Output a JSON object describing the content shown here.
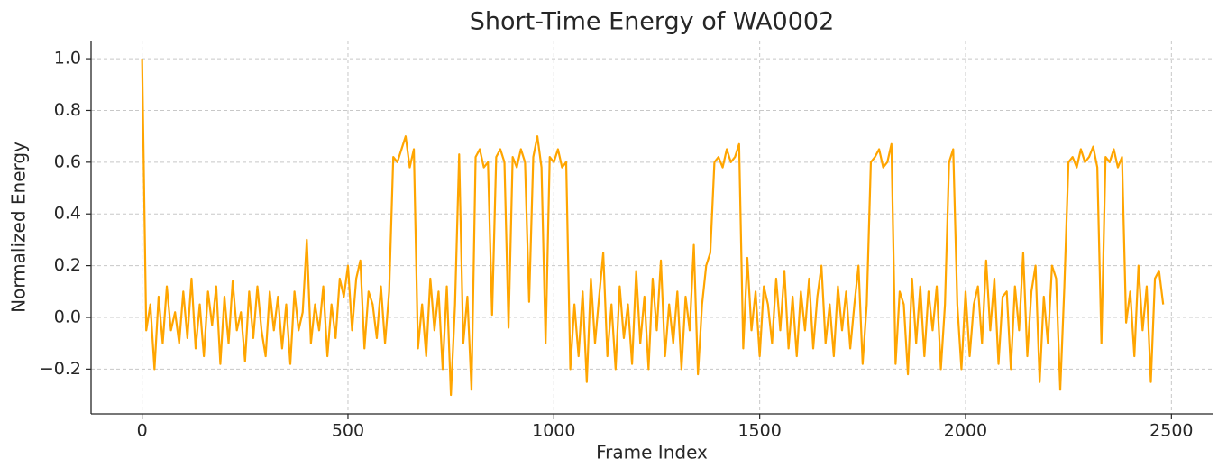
{
  "chart_data": {
    "type": "line",
    "title": "Short-Time Energy of WA0002",
    "xlabel": "Frame Index",
    "ylabel": "Normalized Energy",
    "xlim": [
      -124,
      2600
    ],
    "ylim": [
      -0.373,
      1.07
    ],
    "xticks": [
      0,
      500,
      1000,
      1500,
      2000,
      2500
    ],
    "yticks": [
      {
        "value": 1,
        "label": "1.0"
      },
      0.8,
      0.6,
      0.4,
      0.2,
      {
        "value": 0,
        "label": "0.0"
      },
      {
        "value": -0.2,
        "label": "−0.2"
      }
    ],
    "grid": true,
    "series": [
      {
        "color": "#ffa500",
        "x": [
          0,
          10,
          20,
          30,
          40,
          50,
          60,
          70,
          80,
          90,
          100,
          110,
          120,
          130,
          140,
          150,
          160,
          170,
          180,
          190,
          200,
          210,
          220,
          230,
          240,
          250,
          260,
          270,
          280,
          290,
          300,
          310,
          320,
          330,
          340,
          350,
          360,
          370,
          380,
          390,
          400,
          410,
          420,
          430,
          440,
          450,
          460,
          470,
          480,
          490,
          500,
          510,
          520,
          530,
          540,
          550,
          560,
          570,
          580,
          590,
          600,
          610,
          620,
          630,
          640,
          650,
          660,
          670,
          680,
          690,
          700,
          710,
          720,
          730,
          740,
          750,
          760,
          770,
          780,
          790,
          800,
          810,
          820,
          830,
          840,
          850,
          860,
          870,
          880,
          890,
          900,
          910,
          920,
          930,
          940,
          950,
          960,
          970,
          980,
          990,
          1000,
          1010,
          1020,
          1030,
          1040,
          1050,
          1060,
          1070,
          1080,
          1090,
          1100,
          1110,
          1120,
          1130,
          1140,
          1150,
          1160,
          1170,
          1180,
          1190,
          1200,
          1210,
          1220,
          1230,
          1240,
          1250,
          1260,
          1270,
          1280,
          1290,
          1300,
          1310,
          1320,
          1330,
          1340,
          1350,
          1360,
          1370,
          1380,
          1390,
          1400,
          1410,
          1420,
          1430,
          1440,
          1450,
          1460,
          1470,
          1480,
          1490,
          1500,
          1510,
          1520,
          1530,
          1540,
          1550,
          1560,
          1570,
          1580,
          1590,
          1600,
          1610,
          1620,
          1630,
          1640,
          1650,
          1660,
          1670,
          1680,
          1690,
          1700,
          1710,
          1720,
          1730,
          1740,
          1750,
          1760,
          1770,
          1780,
          1790,
          1800,
          1810,
          1820,
          1830,
          1840,
          1850,
          1860,
          1870,
          1880,
          1890,
          1900,
          1910,
          1920,
          1930,
          1940,
          1950,
          1960,
          1970,
          1980,
          1990,
          2000,
          2010,
          2020,
          2030,
          2040,
          2050,
          2060,
          2070,
          2080,
          2090,
          2100,
          2110,
          2120,
          2130,
          2140,
          2150,
          2160,
          2170,
          2180,
          2190,
          2200,
          2210,
          2220,
          2230,
          2240,
          2250,
          2260,
          2270,
          2280,
          2290,
          2300,
          2310,
          2320,
          2330,
          2340,
          2350,
          2360,
          2370,
          2380,
          2390,
          2400,
          2410,
          2420,
          2430,
          2440,
          2450,
          2460,
          2470,
          2480
        ],
        "values": [
          1.0,
          -0.05,
          0.05,
          -0.2,
          0.08,
          -0.1,
          0.12,
          -0.05,
          0.02,
          -0.1,
          0.1,
          -0.08,
          0.15,
          -0.12,
          0.05,
          -0.15,
          0.1,
          -0.03,
          0.12,
          -0.18,
          0.08,
          -0.1,
          0.14,
          -0.05,
          0.02,
          -0.17,
          0.1,
          -0.08,
          0.12,
          -0.05,
          -0.15,
          0.1,
          -0.05,
          0.08,
          -0.12,
          0.05,
          -0.18,
          0.1,
          -0.05,
          0.02,
          0.3,
          -0.1,
          0.05,
          -0.05,
          0.12,
          -0.15,
          0.05,
          -0.08,
          0.15,
          0.08,
          0.2,
          -0.05,
          0.15,
          0.22,
          -0.12,
          0.1,
          0.05,
          -0.08,
          0.12,
          -0.1,
          0.1,
          0.62,
          0.6,
          0.65,
          0.7,
          0.58,
          0.65,
          -0.12,
          0.05,
          -0.15,
          0.15,
          -0.05,
          0.1,
          -0.2,
          0.12,
          -0.3,
          0.05,
          0.63,
          -0.1,
          0.08,
          -0.28,
          0.62,
          0.65,
          0.58,
          0.6,
          0.01,
          0.62,
          0.65,
          0.6,
          -0.04,
          0.62,
          0.58,
          0.65,
          0.6,
          0.06,
          0.62,
          0.7,
          0.58,
          -0.1,
          0.62,
          0.6,
          0.65,
          0.58,
          0.6,
          -0.2,
          0.05,
          -0.15,
          0.1,
          -0.25,
          0.15,
          -0.1,
          0.08,
          0.25,
          -0.15,
          0.05,
          -0.2,
          0.12,
          -0.08,
          0.05,
          -0.18,
          0.18,
          -0.1,
          0.08,
          -0.2,
          0.15,
          -0.05,
          0.22,
          -0.15,
          0.05,
          -0.1,
          0.1,
          -0.2,
          0.08,
          -0.05,
          0.28,
          -0.22,
          0.05,
          0.2,
          0.25,
          0.6,
          0.62,
          0.58,
          0.65,
          0.6,
          0.62,
          0.67,
          -0.12,
          0.23,
          -0.05,
          0.1,
          -0.15,
          0.12,
          0.05,
          -0.1,
          0.15,
          -0.05,
          0.18,
          -0.12,
          0.08,
          -0.15,
          0.1,
          -0.05,
          0.15,
          -0.12,
          0.08,
          0.2,
          -0.1,
          0.05,
          -0.15,
          0.12,
          -0.05,
          0.1,
          -0.12,
          0.05,
          0.2,
          -0.18,
          0.05,
          0.6,
          0.62,
          0.65,
          0.58,
          0.6,
          0.67,
          -0.18,
          0.1,
          0.05,
          -0.22,
          0.15,
          -0.1,
          0.12,
          -0.15,
          0.1,
          -0.05,
          0.12,
          -0.2,
          0.05,
          0.6,
          0.65,
          0.05,
          -0.2,
          0.1,
          -0.15,
          0.05,
          0.12,
          -0.1,
          0.22,
          -0.05,
          0.15,
          -0.18,
          0.08,
          0.1,
          -0.2,
          0.12,
          -0.05,
          0.25,
          -0.15,
          0.1,
          0.2,
          -0.25,
          0.08,
          -0.1,
          0.2,
          0.15,
          -0.28,
          0.12,
          0.6,
          0.62,
          0.58,
          0.65,
          0.6,
          0.62,
          0.66,
          0.58,
          -0.1,
          0.62,
          0.6,
          0.65,
          0.58,
          0.62,
          -0.02,
          0.1,
          -0.15,
          0.2,
          -0.05,
          0.12,
          -0.25,
          0.15,
          0.18,
          0.05
        ]
      }
    ]
  }
}
